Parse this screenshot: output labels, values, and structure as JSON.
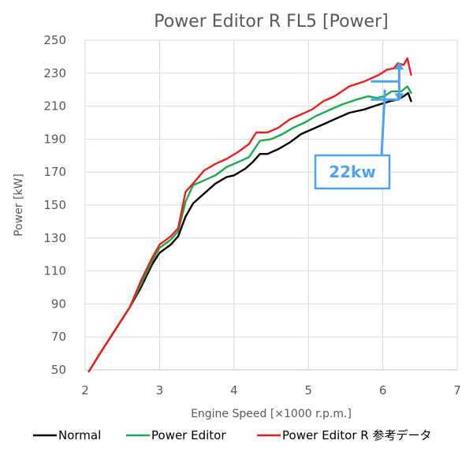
{
  "chart_data": {
    "type": "line",
    "title": "Power Editor R  FL5 [Power]",
    "xlabel": "Engine Speed [×1000 r.p.m.]",
    "ylabel": "Power [kW]",
    "xlim": [
      2,
      7
    ],
    "ylim": [
      50,
      250
    ],
    "x_ticks": [
      "2",
      "3",
      "4",
      "5",
      "6",
      "7"
    ],
    "y_ticks": [
      "50",
      "70",
      "90",
      "110",
      "130",
      "150",
      "170",
      "190",
      "210",
      "230",
      "250"
    ],
    "grid": true,
    "legend_position": "bottom",
    "series": [
      {
        "name": "Normal",
        "color": "#000000",
        "points": [
          [
            2.05,
            49
          ],
          [
            2.2,
            60
          ],
          [
            2.4,
            74
          ],
          [
            2.6,
            88
          ],
          [
            2.75,
            100
          ],
          [
            2.9,
            114
          ],
          [
            3.0,
            121
          ],
          [
            3.15,
            126
          ],
          [
            3.25,
            131
          ],
          [
            3.35,
            143
          ],
          [
            3.45,
            151
          ],
          [
            3.6,
            157
          ],
          [
            3.75,
            163
          ],
          [
            3.9,
            167
          ],
          [
            4.0,
            168
          ],
          [
            4.15,
            172
          ],
          [
            4.25,
            176
          ],
          [
            4.35,
            181
          ],
          [
            4.45,
            181
          ],
          [
            4.6,
            184
          ],
          [
            4.75,
            188
          ],
          [
            4.9,
            193
          ],
          [
            5.05,
            196
          ],
          [
            5.2,
            199
          ],
          [
            5.35,
            202
          ],
          [
            5.55,
            206
          ],
          [
            5.75,
            208
          ],
          [
            5.95,
            211
          ],
          [
            6.1,
            213
          ],
          [
            6.2,
            214
          ],
          [
            6.28,
            216
          ],
          [
            6.34,
            218
          ],
          [
            6.38,
            213
          ]
        ]
      },
      {
        "name": "Power Editor",
        "color": "#1aab50",
        "points": [
          [
            2.05,
            49
          ],
          [
            2.2,
            60
          ],
          [
            2.4,
            74
          ],
          [
            2.6,
            88
          ],
          [
            2.75,
            102
          ],
          [
            2.9,
            116
          ],
          [
            3.0,
            124
          ],
          [
            3.15,
            129
          ],
          [
            3.25,
            134
          ],
          [
            3.35,
            152
          ],
          [
            3.45,
            162
          ],
          [
            3.6,
            165
          ],
          [
            3.75,
            168
          ],
          [
            3.9,
            173
          ],
          [
            4.05,
            176
          ],
          [
            4.2,
            179
          ],
          [
            4.35,
            189
          ],
          [
            4.5,
            190
          ],
          [
            4.65,
            193
          ],
          [
            4.8,
            197
          ],
          [
            4.95,
            200
          ],
          [
            5.1,
            204
          ],
          [
            5.25,
            207
          ],
          [
            5.45,
            211
          ],
          [
            5.65,
            214
          ],
          [
            5.8,
            216
          ],
          [
            5.92,
            215
          ],
          [
            6.02,
            216
          ],
          [
            6.12,
            219
          ],
          [
            6.25,
            219
          ],
          [
            6.33,
            222
          ],
          [
            6.38,
            218
          ]
        ]
      },
      {
        "name": "Power Editor R 参考データ",
        "color": "#ee1c1c",
        "points": [
          [
            2.05,
            49
          ],
          [
            2.2,
            60
          ],
          [
            2.4,
            74
          ],
          [
            2.6,
            88
          ],
          [
            2.75,
            104
          ],
          [
            2.9,
            118
          ],
          [
            3.0,
            126
          ],
          [
            3.15,
            131
          ],
          [
            3.25,
            136
          ],
          [
            3.35,
            158
          ],
          [
            3.45,
            163
          ],
          [
            3.6,
            171
          ],
          [
            3.75,
            175
          ],
          [
            3.9,
            178
          ],
          [
            4.05,
            182
          ],
          [
            4.2,
            187
          ],
          [
            4.3,
            194
          ],
          [
            4.45,
            194
          ],
          [
            4.6,
            197
          ],
          [
            4.75,
            202
          ],
          [
            4.9,
            205
          ],
          [
            5.05,
            208
          ],
          [
            5.2,
            213
          ],
          [
            5.35,
            216
          ],
          [
            5.55,
            222
          ],
          [
            5.75,
            225
          ],
          [
            5.95,
            229
          ],
          [
            6.05,
            232
          ],
          [
            6.15,
            233
          ],
          [
            6.2,
            236
          ],
          [
            6.28,
            235
          ],
          [
            6.33,
            239
          ],
          [
            6.38,
            229
          ]
        ]
      }
    ],
    "annotation": {
      "label": "22kw",
      "color": "#4da3f2",
      "bracket_x": 6.22,
      "low_value": 214,
      "high_value": 236
    }
  }
}
